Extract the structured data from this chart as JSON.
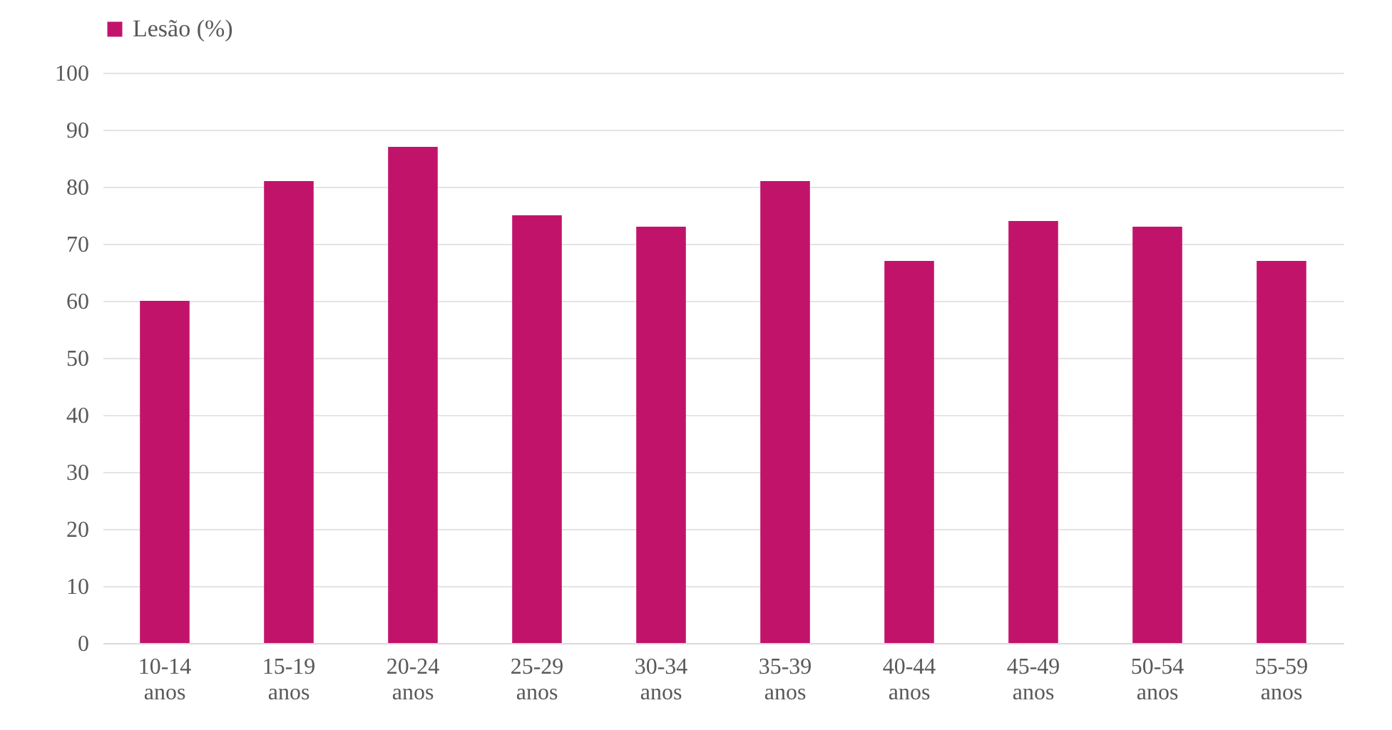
{
  "chart_data": {
    "type": "bar",
    "categories": [
      "10-14 anos",
      "15-19 anos",
      "20-24 anos",
      "25-29 anos",
      "30-34 anos",
      "35-39 anos",
      "40-44 anos",
      "45-49 anos",
      "50-54 anos",
      "55-59 anos"
    ],
    "series": [
      {
        "name": "Lesão (%)",
        "color": "#c2136b",
        "values": [
          60,
          81,
          87,
          75,
          73,
          81,
          67,
          74,
          73,
          67
        ]
      }
    ],
    "ylim": [
      0,
      100
    ],
    "yticks": [
      0,
      10,
      20,
      30,
      40,
      50,
      60,
      70,
      80,
      90,
      100
    ],
    "grid": "y",
    "legend": "top"
  }
}
